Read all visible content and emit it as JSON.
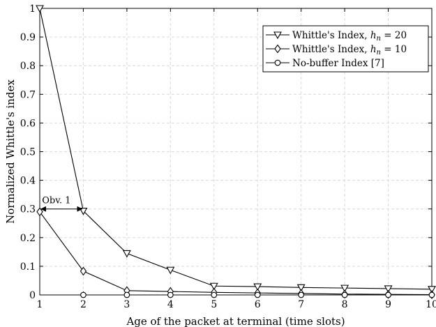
{
  "chart_data": {
    "type": "line",
    "title": "",
    "xlabel": "Age of the packet at terminal (time slots)",
    "ylabel": "Normalized Whittle's index",
    "xlim": [
      1,
      10
    ],
    "ylim": [
      0,
      1
    ],
    "xticks": [
      "1",
      "2",
      "3",
      "4",
      "5",
      "6",
      "7",
      "8",
      "9",
      "10"
    ],
    "yticks": [
      "0",
      "0.1",
      "0.2",
      "0.3",
      "0.4",
      "0.5",
      "0.6",
      "0.7",
      "0.8",
      "0.9",
      "1"
    ],
    "grid": true,
    "legend_position": "top-right",
    "x": [
      1,
      2,
      3,
      4,
      5,
      6,
      7,
      8,
      9,
      10
    ],
    "series": [
      {
        "name": "Whittle's Index, h_n = 20",
        "legend_text": "Whittle's Index, ",
        "legend_math": "h",
        "legend_sub": "n",
        "legend_tail": " = 20",
        "marker": "triangle-down",
        "values": [
          1.0,
          0.293,
          0.145,
          0.087,
          0.031,
          0.029,
          0.026,
          0.024,
          0.022,
          0.02
        ]
      },
      {
        "name": "Whittle's Index, h_n = 10",
        "legend_text": "Whittle's Index, ",
        "legend_math": "h",
        "legend_sub": "n",
        "legend_tail": " = 10",
        "marker": "diamond",
        "values": [
          0.29,
          0.083,
          0.015,
          0.012,
          0.009,
          0.007,
          0.005,
          0.003,
          0.002,
          0.001
        ]
      },
      {
        "name": "No-buffer Index [7]",
        "legend_text": "No-buffer Index [7]",
        "legend_math": "",
        "legend_sub": "",
        "legend_tail": "",
        "marker": "circle",
        "values": [
          null,
          0.0,
          0.0,
          0.0,
          0.0,
          0.0,
          0.0,
          0.0,
          0.0,
          0.0
        ]
      }
    ],
    "annotations": [
      {
        "text": "Obv. 1",
        "type": "double-arrow",
        "x_from": 1,
        "x_to": 2,
        "y": 0.3
      }
    ],
    "colors": {
      "line": "#000000",
      "grid": "#d9d9d9",
      "background": "#ffffff"
    }
  }
}
